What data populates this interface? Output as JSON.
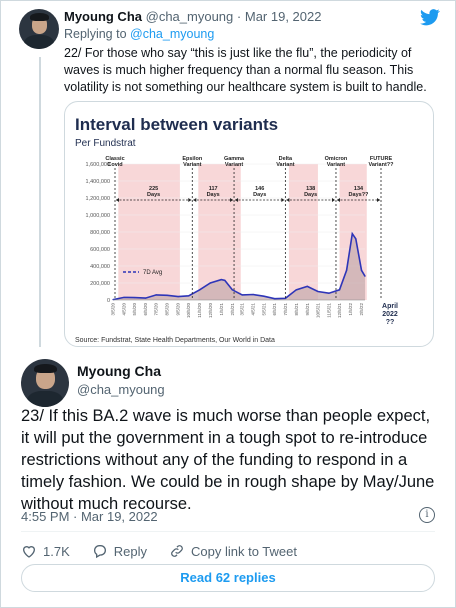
{
  "tweet1": {
    "name": "Myoung Cha",
    "handle": "@cha_myoung",
    "separator": "·",
    "date": "Mar 19, 2022",
    "replying_prefix": "Replying to",
    "replying_to": "@cha_myoung",
    "text": "22/ For those who say “this is just like the flu”, the periodicity of waves is much higher frequency than a normal flu season. This volatility is not something our healthcare system is built to handle."
  },
  "chart_data": {
    "type": "area",
    "title": "Interval between variants",
    "subtitle": "Per Fundstrat",
    "source": "Source: Fundstrat, State Health Departments, Our World in Data",
    "legend": "7D Avg",
    "ylim": [
      0,
      1600000
    ],
    "y_ticks": [
      "0",
      "200,000",
      "400,000",
      "600,000",
      "800,000",
      "1,000,000",
      "1,200,000",
      "1,400,000",
      "1,600,000"
    ],
    "x_ticks": [
      "3/5/20",
      "4/5/20",
      "5/5/20",
      "6/5/20",
      "7/5/20",
      "8/5/20",
      "9/5/20",
      "10/5/20",
      "11/5/20",
      "12/5/20",
      "1/5/21",
      "2/5/21",
      "3/5/21",
      "4/5/21",
      "5/5/21",
      "6/5/21",
      "7/5/21",
      "8/5/21",
      "9/5/21",
      "10/5/21",
      "11/5/21",
      "12/5/21",
      "1/5/22",
      "2/5/22"
    ],
    "variants": [
      {
        "label": "Classic Covid",
        "x": "3/5/20"
      },
      {
        "label": "Epsilon Variant",
        "x": "10/15/20"
      },
      {
        "label": "Gamma Variant",
        "x": "2/10/21"
      },
      {
        "label": "Delta Variant",
        "x": "7/5/21"
      },
      {
        "label": "Omicron Variant",
        "x": "11/25/21"
      },
      {
        "label": "FUTURE Variant??",
        "x": "4/15/22"
      }
    ],
    "intervals": [
      {
        "label": "225 Days"
      },
      {
        "label": "117 Days"
      },
      {
        "label": "146 Days"
      },
      {
        "label": "138 Days"
      },
      {
        "label": "134 Days??"
      }
    ],
    "shaded_periods": [
      [
        "3/20/20",
        "9/10/20"
      ],
      [
        "11/1/20",
        "3/1/21"
      ],
      [
        "7/15/21",
        "10/5/21"
      ],
      [
        "12/5/21",
        "2/20/22"
      ]
    ],
    "future_label": "April 2022 ??",
    "series": [
      {
        "name": "7D Avg",
        "x": [
          "3/5/20",
          "4/5/20",
          "5/5/20",
          "6/5/20",
          "7/5/20",
          "8/5/20",
          "9/5/20",
          "10/5/20",
          "11/5/20",
          "12/5/20",
          "1/5/21",
          "1/15/21",
          "2/5/21",
          "3/5/21",
          "4/5/21",
          "5/5/21",
          "6/5/21",
          "7/5/21",
          "8/5/21",
          "9/5/21",
          "10/5/21",
          "11/5/21",
          "12/5/21",
          "12/25/21",
          "1/10/22",
          "1/20/22",
          "2/5/22",
          "2/15/22"
        ],
        "values": [
          5000,
          30000,
          28000,
          22000,
          60000,
          55000,
          40000,
          50000,
          120000,
          200000,
          240000,
          230000,
          120000,
          60000,
          65000,
          45000,
          15000,
          20000,
          120000,
          160000,
          100000,
          80000,
          120000,
          350000,
          780000,
          720000,
          350000,
          280000
        ]
      }
    ]
  },
  "tweet2": {
    "name": "Myoung Cha",
    "handle": "@cha_myoung",
    "text": "23/ If this BA.2 wave is much worse than people expect, it will put the government in a tough spot to re-introduce restrictions without any of the funding to respond in a timely fashion. We could be in rough shape by May/June without much recourse.",
    "timestamp": "4:55 PM · Mar 19, 2022"
  },
  "actions": {
    "likes": "1.7K",
    "reply": "Reply",
    "copy_link": "Copy link to Tweet",
    "read_replies": "Read 62 replies"
  },
  "colors": {
    "twitter_blue": "#1d9bf0",
    "shade": "#f8d7d8",
    "area": "#c8aeb0",
    "line": "#2e35b8"
  },
  "icons": [
    "twitter-bird-icon",
    "info-icon",
    "heart-icon",
    "reply-icon",
    "link-icon"
  ]
}
